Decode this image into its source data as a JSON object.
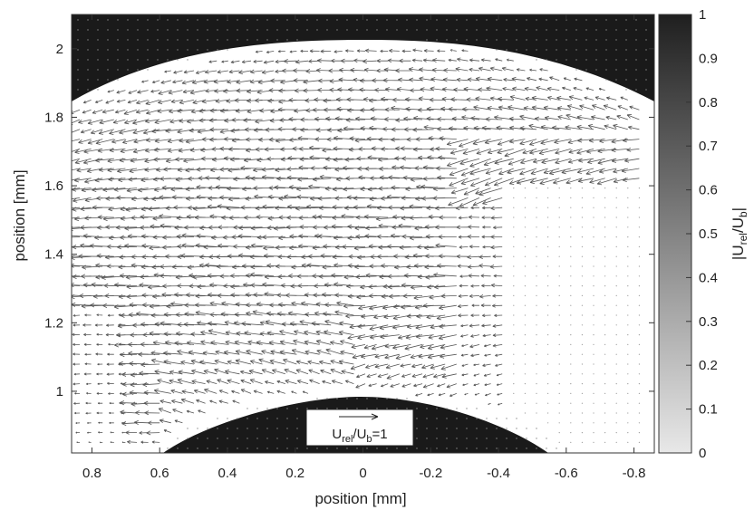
{
  "chart_data": {
    "type": "vector-field",
    "xlabel": "position [mm]",
    "ylabel": "position [mm]",
    "x_axis_reversed": true,
    "xlim": [
      0.86,
      -0.86
    ],
    "ylim": [
      0.82,
      2.1
    ],
    "xticks": [
      0.8,
      0.6,
      0.4,
      0.2,
      0,
      -0.2,
      -0.4,
      -0.6,
      -0.8
    ],
    "xtick_labels": [
      "0.8",
      "0.6",
      "0.4",
      "0.2",
      "0",
      "-0.2",
      "-0.4",
      "-0.6",
      "-0.8"
    ],
    "yticks": [
      1,
      1.2,
      1.4,
      1.6,
      1.8,
      2
    ],
    "ytick_labels": [
      "1",
      "1.2",
      "1.4",
      "1.6",
      "1.8",
      "2"
    ],
    "colorbar": {
      "label_main": "|U",
      "label_sub1": "rel",
      "label_mid": "/U",
      "label_sub2": "b",
      "label_end": "|",
      "range": [
        0,
        1
      ],
      "ticks": [
        0,
        0.1,
        0.2,
        0.3,
        0.4,
        0.5,
        0.6,
        0.7,
        0.8,
        0.9,
        1
      ],
      "tick_labels": [
        "0",
        "0.1",
        "0.2",
        "0.3",
        "0.4",
        "0.5",
        "0.6",
        "0.7",
        "0.8",
        "0.9",
        "1"
      ],
      "color_low": "#e8e8e8",
      "color_high": "#1f1f1f"
    },
    "reference_vector": {
      "label_main": "U",
      "label_sub1": "rel",
      "label_mid": "/U",
      "label_sub2": "b",
      "label_end": "=1",
      "magnitude": 1
    },
    "regions": {
      "upper_solid_boundary": {
        "apex_y": 2.03,
        "edge_y": 1.84
      },
      "lower_solid_boundary": {
        "apex_y": 0.99,
        "edge_y": 0.82
      }
    },
    "flow": {
      "direction": "toward positive x (leftward on the reversed axis)",
      "peak_velocity": 0.6
    }
  }
}
